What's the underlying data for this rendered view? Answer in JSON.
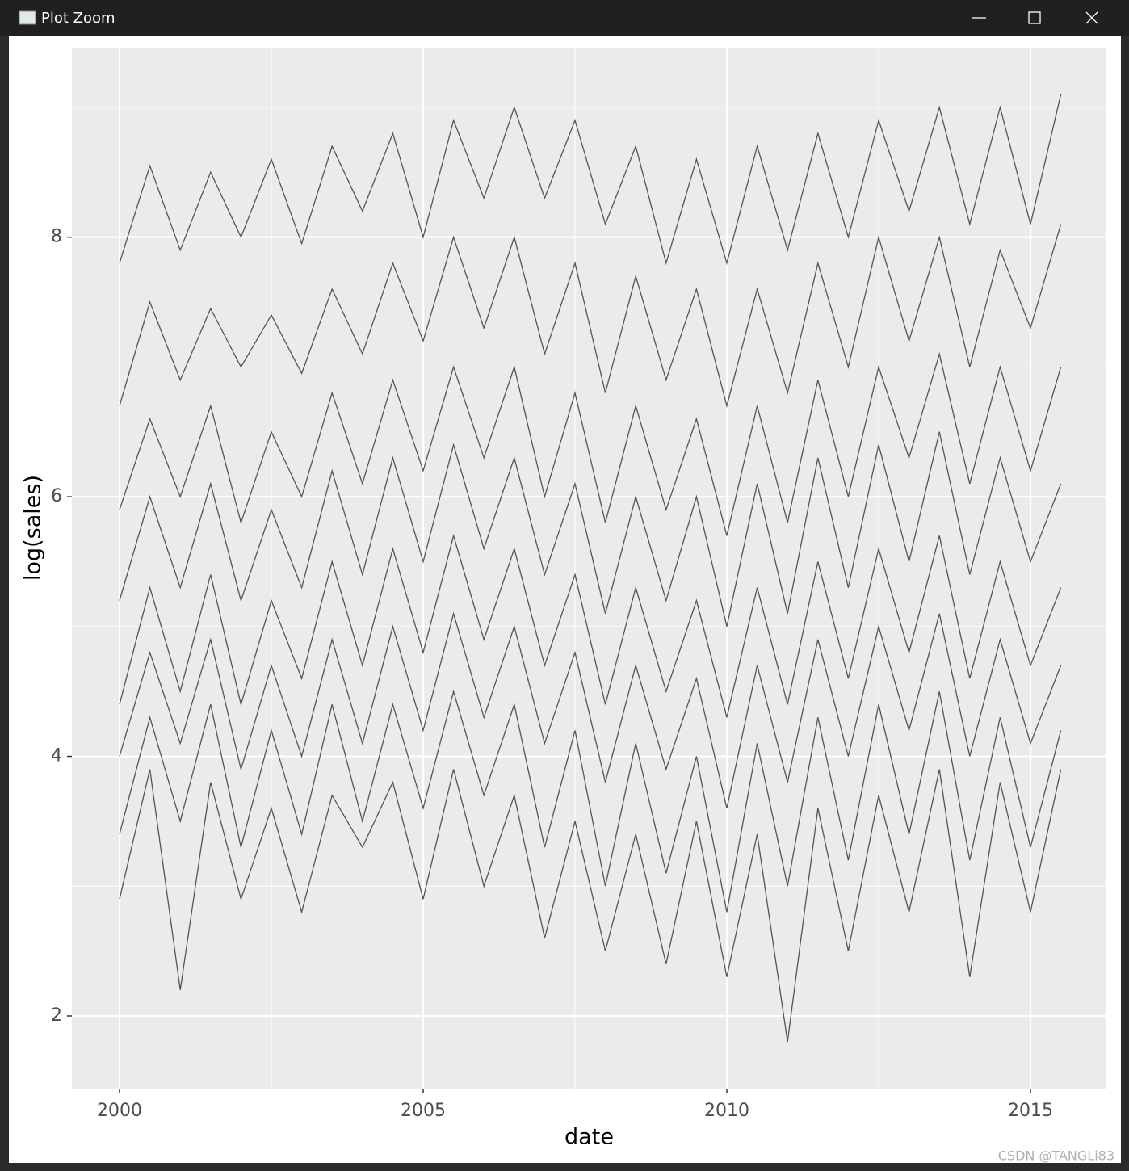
{
  "window": {
    "title": "Plot Zoom"
  },
  "watermark": "CSDN @TANGLi83",
  "chart_data": {
    "type": "line",
    "x_label": "date",
    "y_label": "log(sales)",
    "color": "#3a3a3a",
    "x": [
      2000,
      2000.5,
      2001,
      2001.5,
      2002,
      2002.5,
      2003,
      2003.5,
      2004,
      2004.5,
      2005,
      2005.5,
      2006,
      2006.5,
      2007,
      2007.5,
      2008,
      2008.5,
      2009,
      2009.5,
      2010,
      2010.5,
      2011,
      2011.5,
      2012,
      2012.5,
      2013,
      2013.5,
      2014,
      2014.5,
      2015,
      2015.5
    ],
    "series": [
      {
        "values": [
          7.8,
          8.55,
          7.9,
          8.5,
          8.0,
          8.6,
          7.95,
          8.7,
          8.2,
          8.8,
          8.0,
          8.9,
          8.3,
          9.0,
          8.3,
          8.9,
          8.1,
          8.7,
          7.8,
          8.6,
          7.8,
          8.7,
          7.9,
          8.8,
          8.0,
          8.9,
          8.2,
          9.0,
          8.1,
          9.0,
          8.1,
          9.1
        ]
      },
      {
        "values": [
          6.7,
          7.5,
          6.9,
          7.45,
          7.0,
          7.4,
          6.95,
          7.6,
          7.1,
          7.8,
          7.2,
          8.0,
          7.3,
          8.0,
          7.1,
          7.8,
          6.8,
          7.7,
          6.9,
          7.6,
          6.7,
          7.6,
          6.8,
          7.8,
          7.0,
          8.0,
          7.2,
          8.0,
          7.0,
          7.9,
          7.3,
          8.1
        ]
      },
      {
        "values": [
          5.9,
          6.6,
          6.0,
          6.7,
          5.8,
          6.5,
          6.0,
          6.8,
          6.1,
          6.9,
          6.2,
          7.0,
          6.3,
          7.0,
          6.0,
          6.8,
          5.8,
          6.7,
          5.9,
          6.6,
          5.7,
          6.7,
          5.8,
          6.9,
          6.0,
          7.0,
          6.3,
          7.1,
          6.1,
          7.0,
          6.2,
          7.0
        ]
      },
      {
        "values": [
          5.2,
          6.0,
          5.3,
          6.1,
          5.2,
          5.9,
          5.3,
          6.2,
          5.4,
          6.3,
          5.5,
          6.4,
          5.6,
          6.3,
          5.4,
          6.1,
          5.1,
          6.0,
          5.2,
          6.0,
          5.0,
          6.1,
          5.1,
          6.3,
          5.3,
          6.4,
          5.5,
          6.5,
          5.4,
          6.3,
          5.5,
          6.1
        ]
      },
      {
        "values": [
          4.4,
          5.3,
          4.5,
          5.4,
          4.4,
          5.2,
          4.6,
          5.5,
          4.7,
          5.6,
          4.8,
          5.7,
          4.9,
          5.6,
          4.7,
          5.4,
          4.4,
          5.3,
          4.5,
          5.2,
          4.3,
          5.3,
          4.4,
          5.5,
          4.6,
          5.6,
          4.8,
          5.7,
          4.6,
          5.5,
          4.7,
          5.3
        ]
      },
      {
        "values": [
          4.0,
          4.8,
          4.1,
          4.9,
          3.9,
          4.7,
          4.0,
          4.9,
          4.1,
          5.0,
          4.2,
          5.1,
          4.3,
          5.0,
          4.1,
          4.8,
          3.8,
          4.7,
          3.9,
          4.6,
          3.6,
          4.7,
          3.8,
          4.9,
          4.0,
          5.0,
          4.2,
          5.1,
          4.0,
          4.9,
          4.1,
          4.7
        ]
      },
      {
        "values": [
          3.4,
          4.3,
          3.5,
          4.4,
          3.3,
          4.2,
          3.4,
          4.4,
          3.5,
          4.4,
          3.6,
          4.5,
          3.7,
          4.4,
          3.3,
          4.2,
          3.0,
          4.1,
          3.1,
          4.0,
          2.8,
          4.1,
          3.0,
          4.3,
          3.2,
          4.4,
          3.4,
          4.5,
          3.2,
          4.3,
          3.3,
          4.2
        ]
      },
      {
        "values": [
          2.9,
          3.9,
          2.2,
          3.8,
          2.9,
          3.6,
          2.8,
          3.7,
          3.3,
          3.8,
          2.9,
          3.9,
          3.0,
          3.7,
          2.6,
          3.5,
          2.5,
          3.4,
          2.4,
          3.5,
          2.3,
          3.4,
          1.8,
          3.6,
          2.5,
          3.7,
          2.8,
          3.9,
          2.3,
          3.8,
          2.8,
          3.9
        ]
      }
    ],
    "xlim": [
      1999.215,
      2016.25
    ],
    "ylim": [
      1.44,
      9.46
    ],
    "xticks": [
      2000,
      2005,
      2010,
      2015
    ],
    "yticks": [
      2,
      4,
      6,
      8
    ],
    "x_minor_gridlines": [
      2002.5,
      2007.5,
      2012.5
    ],
    "y_minor_gridlines": [
      3,
      5,
      7,
      9
    ],
    "grid": true
  }
}
